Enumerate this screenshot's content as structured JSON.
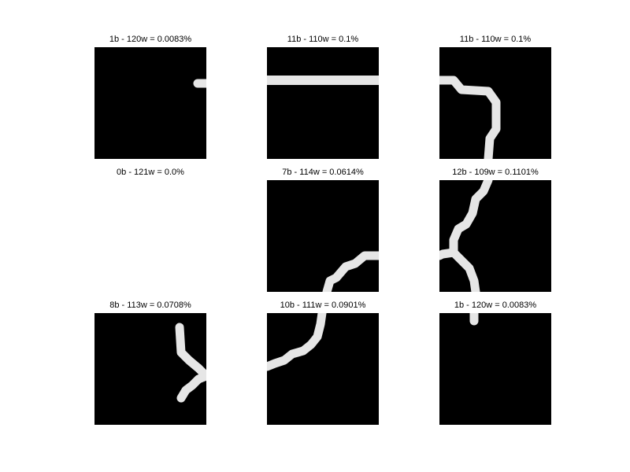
{
  "figure": {
    "tiles": [
      {
        "title": "1b - 120w = 0.0083%"
      },
      {
        "title": "11b - 110w = 0.1%"
      },
      {
        "title": "11b - 110w = 0.1%"
      },
      {
        "title": "0b - 121w = 0.0%"
      },
      {
        "title": "7b - 114w = 0.0614%"
      },
      {
        "title": "12b - 109w = 0.1101%"
      },
      {
        "title": "8b - 113w = 0.0708%"
      },
      {
        "title": "10b - 111w = 0.0901%"
      },
      {
        "title": "1b - 120w = 0.0083%"
      }
    ],
    "colors": {
      "tile_background": "#000000",
      "stroke": "#e6e6e6",
      "page_background": "#ffffff"
    }
  }
}
